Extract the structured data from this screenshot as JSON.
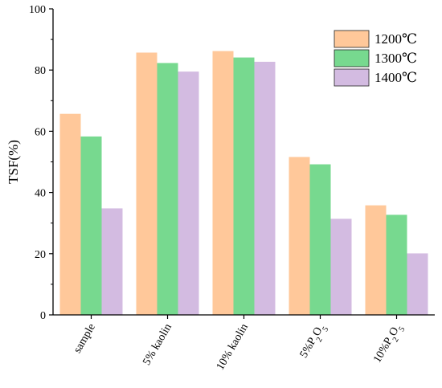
{
  "chart_data": {
    "type": "bar",
    "title": "",
    "xlabel": "",
    "ylabel": "TSF(%)",
    "ylim": [
      0,
      100
    ],
    "yticks": [
      0,
      20,
      40,
      60,
      80,
      100
    ],
    "categories": [
      {
        "label": "sample"
      },
      {
        "label": "5% kaolin"
      },
      {
        "label": "10% kaolin"
      },
      {
        "label": "5%P",
        "sub1": "2",
        "mid": "O",
        "sub2": "5"
      },
      {
        "label": "10%P",
        "sub1": "2",
        "mid": "O",
        "sub2": "5"
      }
    ],
    "series": [
      {
        "name": "1200℃",
        "color": "#ffc89a",
        "values": [
          65.7,
          85.7,
          86.2,
          51.6,
          35.8
        ]
      },
      {
        "name": "1300℃",
        "color": "#77d98f",
        "values": [
          58.3,
          82.3,
          84.1,
          49.2,
          32.7
        ]
      },
      {
        "name": "1400℃",
        "color": "#d3bbe1",
        "values": [
          34.8,
          79.5,
          82.7,
          31.4,
          20.1
        ]
      }
    ],
    "legend_position": "top-right",
    "grid": false
  }
}
